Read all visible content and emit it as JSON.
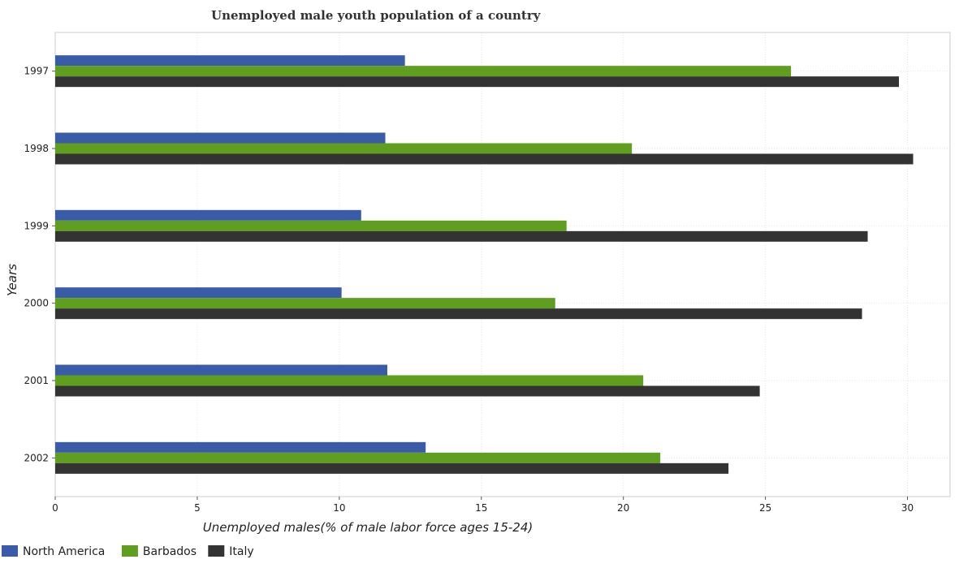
{
  "chart_data": {
    "type": "bar",
    "orientation": "horizontal",
    "title": "Unemployed male youth population of a country",
    "xlabel": "Unemployed males(% of male labor force ages 15-24)",
    "ylabel": "Years",
    "categories": [
      "1997",
      "1998",
      "1999",
      "2000",
      "2001",
      "2002"
    ],
    "xlim": [
      0,
      31.5
    ],
    "xticks": [
      0,
      5,
      10,
      15,
      20,
      25,
      30
    ],
    "series": [
      {
        "name": "North America",
        "color": "#3a5ba8",
        "values": [
          12.31,
          11.62,
          10.77,
          10.08,
          11.69,
          13.04
        ]
      },
      {
        "name": "Barbados",
        "color": "#5f9e1e",
        "values": [
          25.9,
          20.3,
          18.0,
          17.6,
          20.7,
          21.3
        ]
      },
      {
        "name": "Italy",
        "color": "#333333",
        "values": [
          29.7,
          30.2,
          28.6,
          28.4,
          24.8,
          23.7
        ]
      }
    ],
    "grid": true,
    "legend_position": "bottom-left"
  }
}
